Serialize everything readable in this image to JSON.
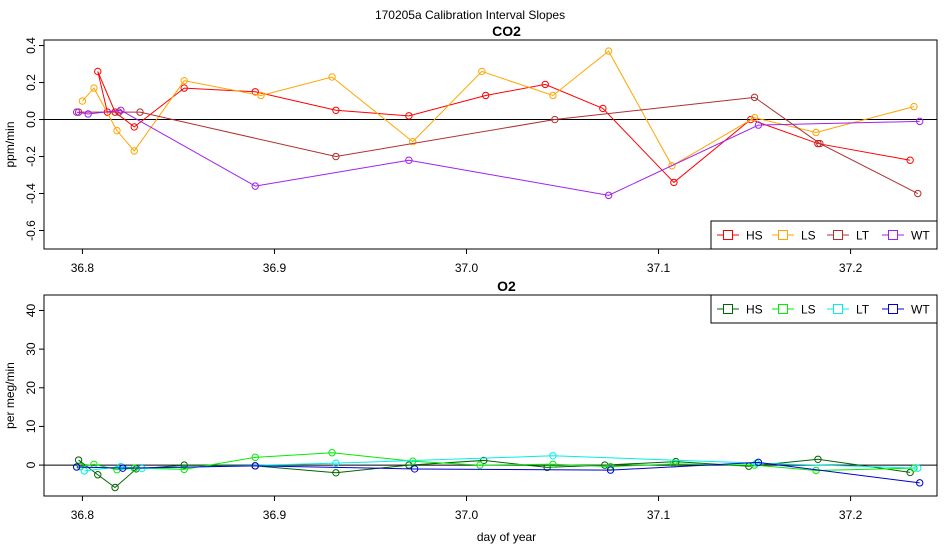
{
  "chart_data": [
    {
      "type": "line",
      "suptitle": "170205a   Calibration Interval Slopes",
      "title": "CO2",
      "xlabel": "",
      "ylabel": "ppm/min",
      "xlim": [
        36.78,
        37.245
      ],
      "ylim": [
        -0.7,
        0.43
      ],
      "xticks": [
        36.8,
        36.9,
        37.0,
        37.1,
        37.2
      ],
      "xtick_labels": [
        "36.8",
        "36.9",
        "37.0",
        "37.1",
        "37.2"
      ],
      "yticks": [
        -0.6,
        -0.4,
        -0.2,
        0.0,
        0.2,
        0.4
      ],
      "ytick_labels": [
        "-0.6",
        "-0.4",
        "-0.2",
        "0.0",
        "0.2",
        "0.4"
      ],
      "zero_line": true,
      "legend_position": "bottom-right",
      "series": [
        {
          "name": "HS",
          "color": "#ff0000",
          "x": [
            36.813,
            36.808,
            36.817,
            36.827,
            36.853,
            36.89,
            36.932,
            36.97,
            37.01,
            37.041,
            37.071,
            37.108,
            37.148,
            37.183,
            37.231
          ],
          "y": [
            0.04,
            0.26,
            0.04,
            -0.04,
            0.17,
            0.15,
            0.05,
            0.02,
            0.13,
            0.19,
            0.06,
            -0.34,
            0.0,
            -0.13,
            -0.22
          ]
        },
        {
          "name": "LS",
          "color": "#ffa500",
          "x": [
            36.8,
            36.806,
            36.818,
            36.827,
            36.853,
            36.893,
            36.93,
            36.972,
            37.008,
            37.045,
            37.074,
            37.107,
            37.15,
            37.182,
            37.233
          ],
          "y": [
            0.1,
            0.17,
            -0.06,
            -0.17,
            0.21,
            0.13,
            0.23,
            -0.12,
            0.26,
            0.13,
            0.37,
            -0.25,
            0.01,
            -0.07,
            0.07
          ]
        },
        {
          "name": "LT",
          "color": "#b03030",
          "x": [
            36.798,
            36.819,
            36.83,
            36.932,
            37.046,
            37.15,
            37.184,
            37.235
          ],
          "y": [
            0.04,
            0.04,
            0.04,
            -0.2,
            0.0,
            0.12,
            -0.13,
            -0.4
          ]
        },
        {
          "name": "WT",
          "color": "#a020f0",
          "x": [
            36.797,
            36.803,
            36.82,
            36.89,
            36.97,
            37.074,
            37.152,
            37.236
          ],
          "y": [
            0.04,
            0.03,
            0.05,
            -0.36,
            -0.22,
            -0.41,
            -0.03,
            -0.01
          ]
        }
      ]
    },
    {
      "type": "line",
      "title": "O2",
      "xlabel": "day of year",
      "ylabel": "per meg/min",
      "xlim": [
        36.78,
        37.245
      ],
      "ylim": [
        -8,
        44
      ],
      "xticks": [
        36.8,
        36.9,
        37.0,
        37.1,
        37.2
      ],
      "xtick_labels": [
        "36.8",
        "36.9",
        "37.0",
        "37.1",
        "37.2"
      ],
      "yticks": [
        0,
        10,
        20,
        30,
        40
      ],
      "ytick_labels": [
        "0",
        "10",
        "20",
        "30",
        "40"
      ],
      "zero_line": true,
      "legend_position": "top-right",
      "series": [
        {
          "name": "HS",
          "color": "#006400",
          "x": [
            36.798,
            36.808,
            36.817,
            36.828,
            36.853,
            36.89,
            36.932,
            36.97,
            37.009,
            37.042,
            37.072,
            37.109,
            37.147,
            37.183,
            37.231
          ],
          "y": [
            1.3,
            -2.5,
            -5.8,
            -1.0,
            0.0,
            -0.2,
            -2.0,
            0.0,
            1.2,
            -0.6,
            0.0,
            0.9,
            -0.3,
            1.5,
            -1.9
          ]
        },
        {
          "name": "LS",
          "color": "#00ee00",
          "x": [
            36.799,
            36.806,
            36.818,
            36.827,
            36.853,
            36.89,
            36.93,
            36.972,
            37.007,
            37.045,
            37.075,
            37.108,
            37.15,
            37.182,
            37.233
          ],
          "y": [
            -0.4,
            0.2,
            -1.2,
            -0.8,
            -1.1,
            2.0,
            3.2,
            1.0,
            0.0,
            0.2,
            -0.4,
            0.3,
            0.0,
            -1.4,
            -0.8
          ]
        },
        {
          "name": "LT",
          "color": "#00eeee",
          "x": [
            36.801,
            36.82,
            36.831,
            36.932,
            37.045,
            37.151,
            37.235
          ],
          "y": [
            -1.5,
            -0.4,
            -0.9,
            0.5,
            2.4,
            0.5,
            -0.8
          ]
        },
        {
          "name": "WT",
          "color": "#0000cd",
          "x": [
            36.797,
            36.821,
            36.89,
            36.973,
            37.075,
            37.152,
            37.236
          ],
          "y": [
            -0.5,
            -0.8,
            -0.2,
            -1.0,
            -1.3,
            0.7,
            -4.6
          ]
        }
      ]
    }
  ]
}
